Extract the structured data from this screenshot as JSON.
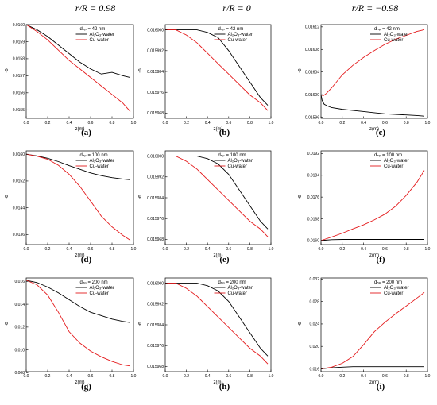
{
  "column_headers": [
    "r/R = 0.98",
    "r/R = 0",
    "r/R = −0.98"
  ],
  "colors": {
    "al2o3": "#000000",
    "cu": "#e41a1c"
  },
  "chart_data": [
    {
      "type": "line",
      "panel": "(a)",
      "x_label": "z(m)",
      "y_label": "φ",
      "legend_title": "dₙₚ =  42 nm",
      "xlim": [
        0,
        1.0
      ],
      "ylim": [
        0.01545,
        0.016
      ],
      "x_ticks": [
        "0.0",
        "0.2",
        "0.4",
        "0.6",
        "0.8",
        "1.0"
      ],
      "x_tick_values": [
        0,
        0.2,
        0.4,
        0.6,
        0.8,
        1.0
      ],
      "y_ticks": [
        "0.0155",
        "0.0156",
        "0.0157",
        "0.0158",
        "0.0159",
        "0.0160"
      ],
      "y_tick_values": [
        0.0155,
        0.0156,
        0.0157,
        0.0158,
        0.0159,
        0.016
      ],
      "series": [
        {
          "name": "Al₂O₃-water",
          "color": "#000000",
          "x": [
            0,
            0.1,
            0.2,
            0.3,
            0.4,
            0.5,
            0.6,
            0.7,
            0.8,
            0.9,
            0.97
          ],
          "y": [
            0.016,
            0.01597,
            0.01593,
            0.01588,
            0.01583,
            0.01578,
            0.01574,
            0.01571,
            0.01572,
            0.0157,
            0.01569
          ]
        },
        {
          "name": "Cu-water",
          "color": "#e41a1c",
          "x": [
            0,
            0.1,
            0.2,
            0.3,
            0.4,
            0.5,
            0.6,
            0.7,
            0.8,
            0.9,
            0.97
          ],
          "y": [
            0.016,
            0.01596,
            0.01591,
            0.01585,
            0.01579,
            0.01574,
            0.01569,
            0.01564,
            0.01559,
            0.01554,
            0.01549
          ]
        }
      ]
    },
    {
      "type": "line",
      "panel": "(b)",
      "x_label": "z(m)",
      "y_label": "φ",
      "legend_title": "dₙₚ =  42 nm",
      "xlim": [
        0,
        1.0
      ],
      "ylim": [
        0.015966,
        0.016002
      ],
      "x_ticks": [
        "0.0",
        "0.2",
        "0.4",
        "0.6",
        "0.8",
        "1.0"
      ],
      "x_tick_values": [
        0,
        0.2,
        0.4,
        0.6,
        0.8,
        1.0
      ],
      "y_ticks": [
        "0.015968",
        "0.015976",
        "0.015984",
        "0.015992",
        "0.016000"
      ],
      "y_tick_values": [
        0.015968,
        0.015976,
        0.015984,
        0.015992,
        0.016
      ],
      "series": [
        {
          "name": "Al₂O₃-water",
          "color": "#000000",
          "x": [
            0,
            0.1,
            0.2,
            0.3,
            0.4,
            0.5,
            0.6,
            0.7,
            0.8,
            0.9,
            0.97
          ],
          "y": [
            0.016,
            0.016,
            0.016,
            0.016,
            0.015999,
            0.015997,
            0.015992,
            0.015986,
            0.01598,
            0.015974,
            0.015971
          ]
        },
        {
          "name": "Cu-water",
          "color": "#e41a1c",
          "x": [
            0,
            0.1,
            0.2,
            0.3,
            0.4,
            0.5,
            0.6,
            0.7,
            0.8,
            0.9,
            0.97
          ],
          "y": [
            0.016,
            0.016,
            0.015998,
            0.015995,
            0.015991,
            0.015987,
            0.015983,
            0.015979,
            0.015975,
            0.015972,
            0.015969
          ]
        }
      ]
    },
    {
      "type": "line",
      "panel": "(c)",
      "x_label": "z(m)",
      "y_label": "φ",
      "legend_title": "dₙₚ =  42 nm",
      "xlim": [
        0,
        1.0
      ],
      "ylim": [
        0.015958,
        0.016124
      ],
      "x_ticks": [
        "0.0",
        "0.2",
        "0.4",
        "0.6",
        "0.8",
        "1.0"
      ],
      "x_tick_values": [
        0,
        0.2,
        0.4,
        0.6,
        0.8,
        1.0
      ],
      "y_ticks": [
        "0.01596",
        "0.01600",
        "0.01604",
        "0.01608",
        "0.01612"
      ],
      "y_tick_values": [
        0.01596,
        0.016,
        0.01604,
        0.01608,
        0.01612
      ],
      "series": [
        {
          "name": "Al₂O₃-water",
          "color": "#000000",
          "x": [
            0,
            0.01,
            0.03,
            0.06,
            0.1,
            0.2,
            0.3,
            0.4,
            0.5,
            0.6,
            0.7,
            0.8,
            0.9,
            0.97
          ],
          "y": [
            0.016,
            0.01599,
            0.015983,
            0.01598,
            0.015977,
            0.015974,
            0.015972,
            0.01597,
            0.015968,
            0.015966,
            0.015965,
            0.015964,
            0.015963,
            0.015962
          ]
        },
        {
          "name": "Cu-water",
          "color": "#e41a1c",
          "x": [
            0,
            0.02,
            0.05,
            0.1,
            0.2,
            0.3,
            0.4,
            0.5,
            0.6,
            0.7,
            0.8,
            0.9,
            0.97
          ],
          "y": [
            0.016,
            0.015998,
            0.016002,
            0.016012,
            0.016035,
            0.016052,
            0.016066,
            0.016078,
            0.016089,
            0.016098,
            0.016105,
            0.016112,
            0.016115
          ]
        }
      ]
    },
    {
      "type": "line",
      "panel": "(d)",
      "x_label": "z(m)",
      "y_label": "φ",
      "legend_title": "dₙₚ = 100 nm",
      "xlim": [
        0,
        1.0
      ],
      "ylim": [
        0.0133,
        0.0161
      ],
      "x_ticks": [
        "0.0",
        "0.2",
        "0.4",
        "0.6",
        "0.8",
        "1.0"
      ],
      "x_tick_values": [
        0,
        0.2,
        0.4,
        0.6,
        0.8,
        1.0
      ],
      "y_ticks": [
        "0.0136",
        "0.0144",
        "0.0152",
        "0.0160"
      ],
      "y_tick_values": [
        0.0136,
        0.0144,
        0.0152,
        0.016
      ],
      "series": [
        {
          "name": "Al₂O₃-water",
          "color": "#000000",
          "x": [
            0,
            0.1,
            0.2,
            0.3,
            0.4,
            0.5,
            0.6,
            0.7,
            0.8,
            0.9,
            0.97
          ],
          "y": [
            0.016,
            0.01595,
            0.01588,
            0.01578,
            0.01566,
            0.01555,
            0.01544,
            0.01536,
            0.0153,
            0.01526,
            0.01524
          ]
        },
        {
          "name": "Cu-water",
          "color": "#e41a1c",
          "x": [
            0,
            0.1,
            0.2,
            0.3,
            0.4,
            0.5,
            0.6,
            0.7,
            0.8,
            0.9,
            0.97
          ],
          "y": [
            0.016,
            0.01594,
            0.01585,
            0.01567,
            0.0154,
            0.01504,
            0.0146,
            0.01415,
            0.01383,
            0.01358,
            0.01343
          ]
        }
      ]
    },
    {
      "type": "line",
      "panel": "(e)",
      "x_label": "z(m)",
      "y_label": "φ",
      "legend_title": "dₙₚ = 100 nm",
      "xlim": [
        0,
        1.0
      ],
      "ylim": [
        0.015966,
        0.016002
      ],
      "x_ticks": [
        "0.0",
        "0.2",
        "0.4",
        "0.6",
        "0.8",
        "1.0"
      ],
      "x_tick_values": [
        0,
        0.2,
        0.4,
        0.6,
        0.8,
        1.0
      ],
      "y_ticks": [
        "0.015968",
        "0.015976",
        "0.015984",
        "0.015992",
        "0.016000"
      ],
      "y_tick_values": [
        0.015968,
        0.015976,
        0.015984,
        0.015992,
        0.016
      ],
      "series": [
        {
          "name": "Al₂O₃-water",
          "color": "#000000",
          "x": [
            0,
            0.1,
            0.2,
            0.3,
            0.4,
            0.5,
            0.6,
            0.7,
            0.8,
            0.9,
            0.97
          ],
          "y": [
            0.016,
            0.016,
            0.016,
            0.016,
            0.015999,
            0.015997,
            0.015993,
            0.015987,
            0.015981,
            0.015975,
            0.015972
          ]
        },
        {
          "name": "Cu-water",
          "color": "#e41a1c",
          "x": [
            0,
            0.1,
            0.2,
            0.3,
            0.4,
            0.5,
            0.6,
            0.7,
            0.8,
            0.9,
            0.97
          ],
          "y": [
            0.016,
            0.016,
            0.015998,
            0.015995,
            0.015991,
            0.015987,
            0.015983,
            0.015979,
            0.015975,
            0.015972,
            0.015969
          ]
        }
      ]
    },
    {
      "type": "line",
      "panel": "(f)",
      "x_label": "z(m)",
      "y_label": "φ",
      "legend_title": "dₙₚ = 100 nm",
      "xlim": [
        0,
        1.0
      ],
      "ylim": [
        0.01585,
        0.0193
      ],
      "x_ticks": [
        "0.0",
        "0.2",
        "0.4",
        "0.6",
        "0.8",
        "1.0"
      ],
      "x_tick_values": [
        0,
        0.2,
        0.4,
        0.6,
        0.8,
        1.0
      ],
      "y_ticks": [
        "0.0160",
        "0.0168",
        "0.0176",
        "0.0184",
        "0.0192"
      ],
      "y_tick_values": [
        0.016,
        0.0168,
        0.0176,
        0.0184,
        0.0192
      ],
      "series": [
        {
          "name": "Al₂O₃-water",
          "color": "#000000",
          "x": [
            0,
            0.1,
            0.2,
            0.4,
            0.6,
            0.8,
            0.97
          ],
          "y": [
            0.016,
            0.01603,
            0.01604,
            0.01604,
            0.01604,
            0.01604,
            0.01604
          ]
        },
        {
          "name": "Cu-water",
          "color": "#e41a1c",
          "x": [
            0,
            0.1,
            0.2,
            0.3,
            0.4,
            0.5,
            0.6,
            0.7,
            0.8,
            0.9,
            0.97
          ],
          "y": [
            0.016,
            0.01613,
            0.01627,
            0.01643,
            0.01658,
            0.01676,
            0.01697,
            0.01726,
            0.01766,
            0.01814,
            0.01858
          ]
        }
      ]
    },
    {
      "type": "line",
      "panel": "(g)",
      "x_label": "z(m)",
      "y_label": "φ",
      "legend_title": "dₙₚ = 200 nm",
      "xlim": [
        0,
        1.0
      ],
      "ylim": [
        0.0081,
        0.0163
      ],
      "x_ticks": [
        "0.0",
        "0.2",
        "0.4",
        "0.6",
        "0.8",
        "1.0"
      ],
      "x_tick_values": [
        0,
        0.2,
        0.4,
        0.6,
        0.8,
        1.0
      ],
      "y_ticks": [
        "0.008",
        "0.010",
        "0.012",
        "0.014",
        "0.016"
      ],
      "y_tick_values": [
        0.008,
        0.01,
        0.012,
        0.014,
        0.016
      ],
      "series": [
        {
          "name": "Al₂O₃-water",
          "color": "#000000",
          "x": [
            0,
            0.1,
            0.2,
            0.3,
            0.4,
            0.5,
            0.6,
            0.7,
            0.8,
            0.9,
            0.97
          ],
          "y": [
            0.0161,
            0.0159,
            0.0155,
            0.015,
            0.0144,
            0.0138,
            0.0133,
            0.013,
            0.0127,
            0.0125,
            0.0124
          ]
        },
        {
          "name": "Cu-water",
          "color": "#e41a1c",
          "x": [
            0,
            0.1,
            0.2,
            0.3,
            0.4,
            0.5,
            0.6,
            0.7,
            0.8,
            0.9,
            0.97
          ],
          "y": [
            0.0161,
            0.0157,
            0.0148,
            0.0133,
            0.0116,
            0.0106,
            0.0099,
            0.0094,
            0.009,
            0.0087,
            0.0086
          ]
        }
      ]
    },
    {
      "type": "line",
      "panel": "(h)",
      "x_label": "z(m)",
      "y_label": "φ",
      "legend_title": "dₙₚ = 200 nm",
      "xlim": [
        0,
        1.0
      ],
      "ylim": [
        0.015966,
        0.016002
      ],
      "x_ticks": [
        "0.0",
        "0.2",
        "0.4",
        "0.6",
        "0.8",
        "1.0"
      ],
      "x_tick_values": [
        0,
        0.2,
        0.4,
        0.6,
        0.8,
        1.0
      ],
      "y_ticks": [
        "0.015968",
        "0.015976",
        "0.015984",
        "0.015992",
        "0.016000"
      ],
      "y_tick_values": [
        0.015968,
        0.015976,
        0.015984,
        0.015992,
        0.016
      ],
      "series": [
        {
          "name": "Al₂O₃-water",
          "color": "#000000",
          "x": [
            0,
            0.1,
            0.2,
            0.3,
            0.4,
            0.5,
            0.6,
            0.7,
            0.8,
            0.9,
            0.97
          ],
          "y": [
            0.016,
            0.016,
            0.016,
            0.016,
            0.015999,
            0.015997,
            0.015993,
            0.015987,
            0.015981,
            0.015975,
            0.015972
          ]
        },
        {
          "name": "Cu-water",
          "color": "#e41a1c",
          "x": [
            0,
            0.1,
            0.2,
            0.3,
            0.4,
            0.5,
            0.6,
            0.7,
            0.8,
            0.9,
            0.97
          ],
          "y": [
            0.016,
            0.016,
            0.015998,
            0.015995,
            0.015991,
            0.015987,
            0.015983,
            0.015979,
            0.015975,
            0.015972,
            0.015969
          ]
        }
      ]
    },
    {
      "type": "line",
      "panel": "(i)",
      "x_label": "z(m)",
      "y_label": "φ",
      "legend_title": "dₙₚ = 200 nm",
      "xlim": [
        0,
        1.0
      ],
      "ylim": [
        0.0155,
        0.0322
      ],
      "x_ticks": [
        "0.0",
        "0.2",
        "0.4",
        "0.6",
        "0.8",
        "1.0"
      ],
      "x_tick_values": [
        0,
        0.2,
        0.4,
        0.6,
        0.8,
        1.0
      ],
      "y_ticks": [
        "0.016",
        "0.020",
        "0.024",
        "0.028",
        "0.032"
      ],
      "y_tick_values": [
        0.016,
        0.02,
        0.024,
        0.028,
        0.032
      ],
      "series": [
        {
          "name": "Al₂O₃-water",
          "color": "#000000",
          "x": [
            0,
            0.1,
            0.2,
            0.3,
            0.4,
            0.6,
            0.8,
            0.97
          ],
          "y": [
            0.016,
            0.0162,
            0.0163,
            0.0164,
            0.0164,
            0.0164,
            0.0164,
            0.0164
          ]
        },
        {
          "name": "Cu-water",
          "color": "#e41a1c",
          "x": [
            0,
            0.1,
            0.2,
            0.3,
            0.4,
            0.5,
            0.6,
            0.7,
            0.8,
            0.9,
            0.97
          ],
          "y": [
            0.016,
            0.0163,
            0.017,
            0.0182,
            0.0203,
            0.0226,
            0.0243,
            0.0258,
            0.0272,
            0.0286,
            0.0296
          ]
        }
      ]
    }
  ]
}
